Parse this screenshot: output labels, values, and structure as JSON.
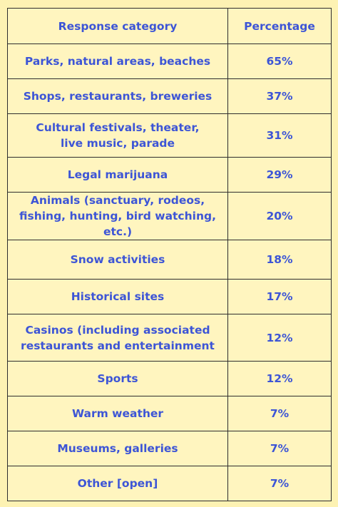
{
  "chart_data": {
    "type": "table",
    "columns": [
      "Response category",
      "Percentage"
    ],
    "rows": [
      {
        "category_lines": [
          "Parks, natural areas, beaches"
        ],
        "value": "65%"
      },
      {
        "category_lines": [
          "Shops, restaurants, breweries"
        ],
        "value": "37%"
      },
      {
        "category_lines": [
          "Cultural festivals, theater,",
          "live music, parade"
        ],
        "value": "31%"
      },
      {
        "category_lines": [
          "Legal marijuana"
        ],
        "value": "29%"
      },
      {
        "category_lines": [
          "Animals (sanctuary, rodeos,",
          "fishing, hunting, bird watching, etc.)"
        ],
        "value": "20%"
      },
      {
        "category_lines": [
          "Snow activities"
        ],
        "value": "18%"
      },
      {
        "category_lines": [
          "Historical sites"
        ],
        "value": "17%"
      },
      {
        "category_lines": [
          "Casinos (including associated",
          "restaurants and entertainment"
        ],
        "value": "12%"
      },
      {
        "category_lines": [
          "Sports"
        ],
        "value": "12%"
      },
      {
        "category_lines": [
          "Warm weather"
        ],
        "value": "7%"
      },
      {
        "category_lines": [
          "Museums, galleries"
        ],
        "value": "7%"
      },
      {
        "category_lines": [
          "Other [open]"
        ],
        "value": "7%"
      }
    ]
  },
  "colors": {
    "background": "#fdf2b3",
    "text": "#3d55d6",
    "border": "#2d2d2d"
  }
}
